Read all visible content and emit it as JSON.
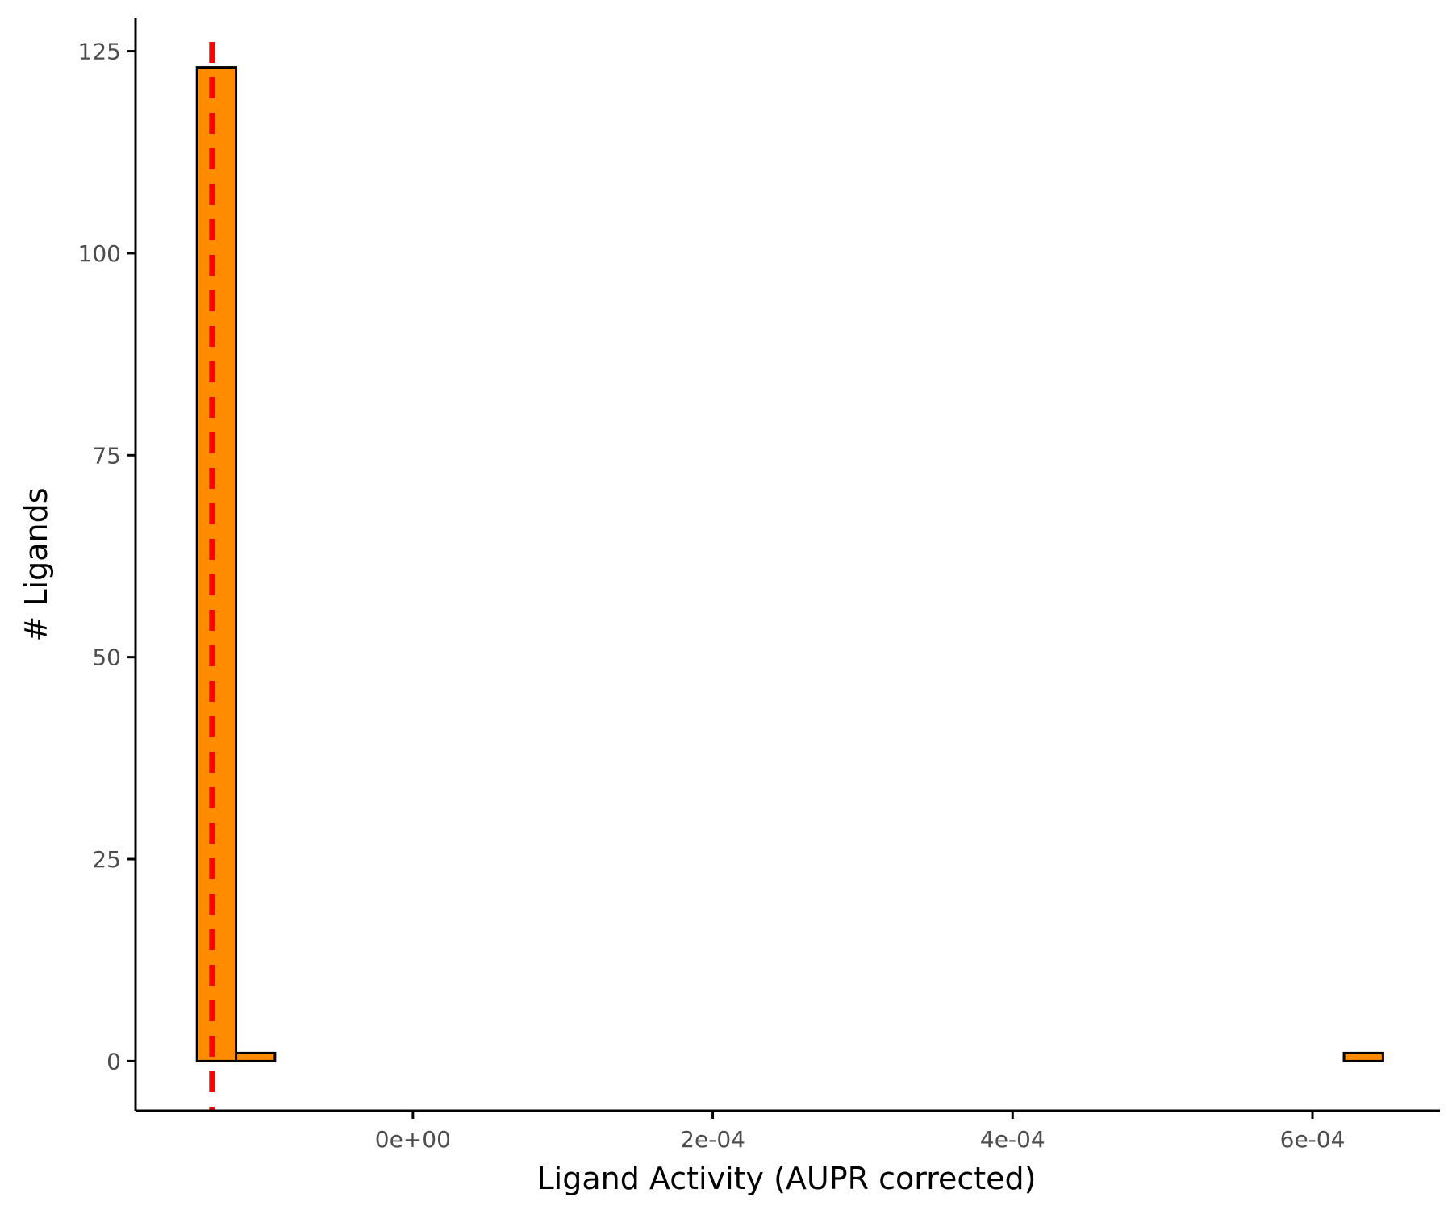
{
  "chart_data": {
    "type": "bar",
    "subtype": "histogram",
    "xlabel": "Ligand Activity (AUPR corrected)",
    "ylabel": "# Ligands",
    "xlim": [
      -0.000185,
      0.000685
    ],
    "ylim": [
      -6.15,
      129.15
    ],
    "x_ticks": [
      {
        "value": 0.0,
        "label": "0e+00"
      },
      {
        "value": 0.0002,
        "label": "2e-04"
      },
      {
        "value": 0.0004,
        "label": "4e-04"
      },
      {
        "value": 0.0006,
        "label": "6e-04"
      }
    ],
    "y_ticks": [
      {
        "value": 0,
        "label": "0"
      },
      {
        "value": 25,
        "label": "25"
      },
      {
        "value": 50,
        "label": "50"
      },
      {
        "value": 75,
        "label": "75"
      },
      {
        "value": 100,
        "label": "100"
      },
      {
        "value": 125,
        "label": "125"
      }
    ],
    "bins": [
      {
        "x0": -0.000144,
        "x1": -0.000118,
        "count": 123
      },
      {
        "x0": -0.000118,
        "x1": -9.2e-05,
        "count": 1
      },
      {
        "x0": -9.2e-05,
        "x1": 0.000621,
        "count": 0
      },
      {
        "x0": 0.000621,
        "x1": 0.000647,
        "count": 1
      }
    ],
    "threshold_line": {
      "x": -0.000134,
      "style": "dashed",
      "color": "#ff0000"
    },
    "bar_fill": "#ff8c00",
    "bar_stroke": "#000000",
    "grid": false,
    "legend": "none"
  }
}
